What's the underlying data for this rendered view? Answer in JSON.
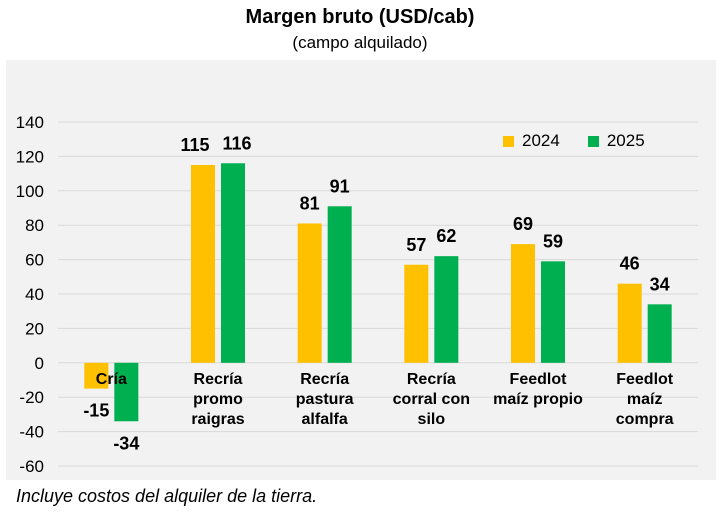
{
  "colors": {
    "s2024": "#FFC000",
    "s2025": "#00B050",
    "grid": "#d9d9d9",
    "plot_bg": "#f2f2f2"
  },
  "chart_data": {
    "type": "bar",
    "title": "Margen bruto (USD/cab)",
    "subtitle": "(campo alquilado)",
    "note": "Incluye costos del alquiler de la tierra.",
    "categories": [
      [
        "Cría"
      ],
      [
        "Recría",
        "promo",
        "raigras"
      ],
      [
        "Recría",
        "pastura",
        "alfalfa"
      ],
      [
        "Recría",
        "corral con",
        "silo"
      ],
      [
        "Feedlot",
        "maíz propio"
      ],
      [
        "Feedlot",
        "maíz",
        "compra"
      ]
    ],
    "series": [
      {
        "name": "2024",
        "values": [
          -15,
          115,
          81,
          57,
          69,
          46
        ]
      },
      {
        "name": "2025",
        "values": [
          -34,
          116,
          91,
          62,
          59,
          34
        ]
      }
    ],
    "ylim": [
      -60,
      140
    ],
    "yticks": [
      -60,
      -40,
      -20,
      0,
      20,
      40,
      60,
      80,
      100,
      120,
      140
    ],
    "grid": true,
    "legend_position": "top-right"
  }
}
